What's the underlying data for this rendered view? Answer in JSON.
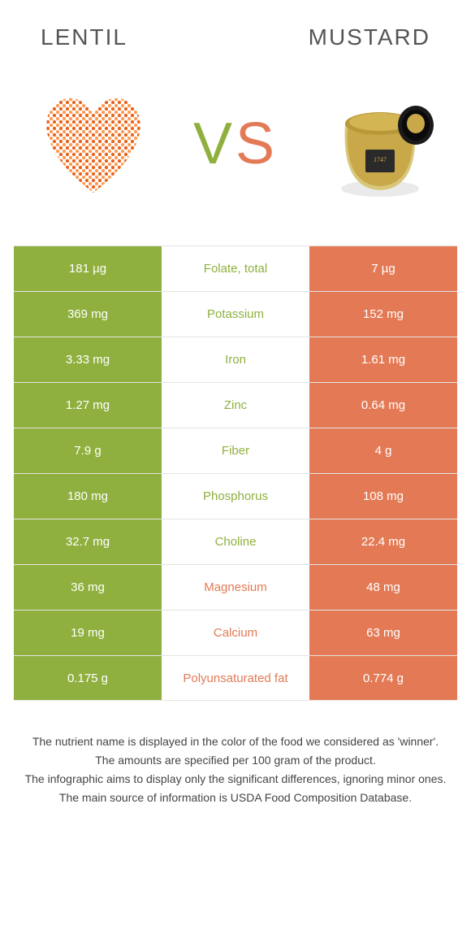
{
  "colors": {
    "lentil": "#8fb03e",
    "mustard": "#e37a55",
    "row_border": "#e3e3e3",
    "title_text": "#555555",
    "body_text": "#444444"
  },
  "header": {
    "left_title": "LENTIL",
    "right_title": "MUSTARD",
    "vs_v": "V",
    "vs_s": "S"
  },
  "images": {
    "left_alt": "lentil-heart",
    "right_alt": "mustard-jar"
  },
  "rows": [
    {
      "nutrient": "Folate, total",
      "left": "181 µg",
      "right": "7 µg",
      "winner": "left"
    },
    {
      "nutrient": "Potassium",
      "left": "369 mg",
      "right": "152 mg",
      "winner": "left"
    },
    {
      "nutrient": "Iron",
      "left": "3.33 mg",
      "right": "1.61 mg",
      "winner": "left"
    },
    {
      "nutrient": "Zinc",
      "left": "1.27 mg",
      "right": "0.64 mg",
      "winner": "left"
    },
    {
      "nutrient": "Fiber",
      "left": "7.9 g",
      "right": "4 g",
      "winner": "left"
    },
    {
      "nutrient": "Phosphorus",
      "left": "180 mg",
      "right": "108 mg",
      "winner": "left"
    },
    {
      "nutrient": "Choline",
      "left": "32.7 mg",
      "right": "22.4 mg",
      "winner": "left"
    },
    {
      "nutrient": "Magnesium",
      "left": "36 mg",
      "right": "48 mg",
      "winner": "right"
    },
    {
      "nutrient": "Calcium",
      "left": "19 mg",
      "right": "63 mg",
      "winner": "right"
    },
    {
      "nutrient": "Polyunsaturated fat",
      "left": "0.175 g",
      "right": "0.774 g",
      "winner": "right"
    }
  ],
  "footnotes": [
    "The nutrient name is displayed in the color of the food we considered as 'winner'.",
    "The amounts are specified per 100 gram of the product.",
    "The infographic aims to display only the significant differences, ignoring minor ones.",
    "The main source of information is USDA Food Composition Database."
  ]
}
